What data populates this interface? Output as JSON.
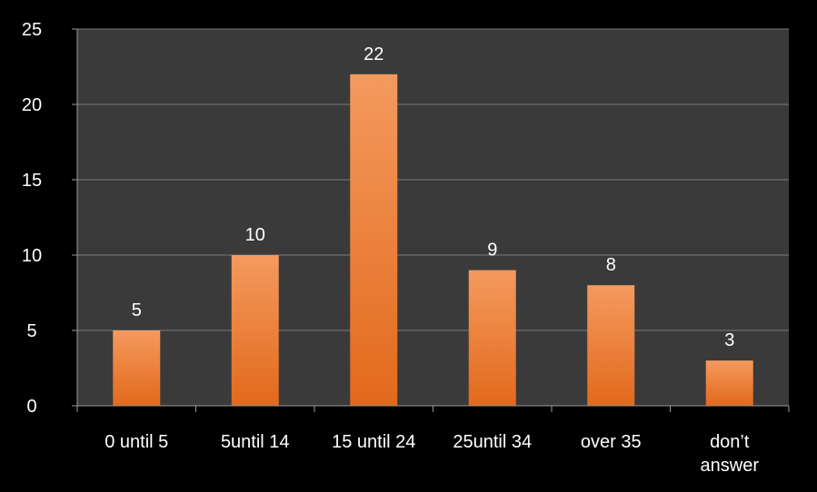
{
  "chart_data": {
    "type": "bar",
    "categories": [
      "0 until 5",
      "5until 14",
      "15 until 24",
      "25until 34",
      "over 35",
      "don’t answer"
    ],
    "category_lines": [
      [
        "0 until 5"
      ],
      [
        "5until 14"
      ],
      [
        "15 until 24"
      ],
      [
        "25until 34"
      ],
      [
        "over 35"
      ],
      [
        "don’t",
        "answer"
      ]
    ],
    "values": [
      5,
      10,
      22,
      9,
      8,
      3
    ],
    "ylim": [
      0,
      25
    ],
    "yticks": [
      0,
      5,
      10,
      15,
      20,
      25
    ],
    "grid": true,
    "legend": "none",
    "data_labels": true
  },
  "colors": {
    "background": "#000000",
    "plot_area": "#3a3a3a",
    "gridline": "#7a7a7a",
    "axis": "#9a9a9a",
    "bar_top": "#f49a5e",
    "bar_bottom": "#e2691c",
    "text": "#ffffff"
  }
}
